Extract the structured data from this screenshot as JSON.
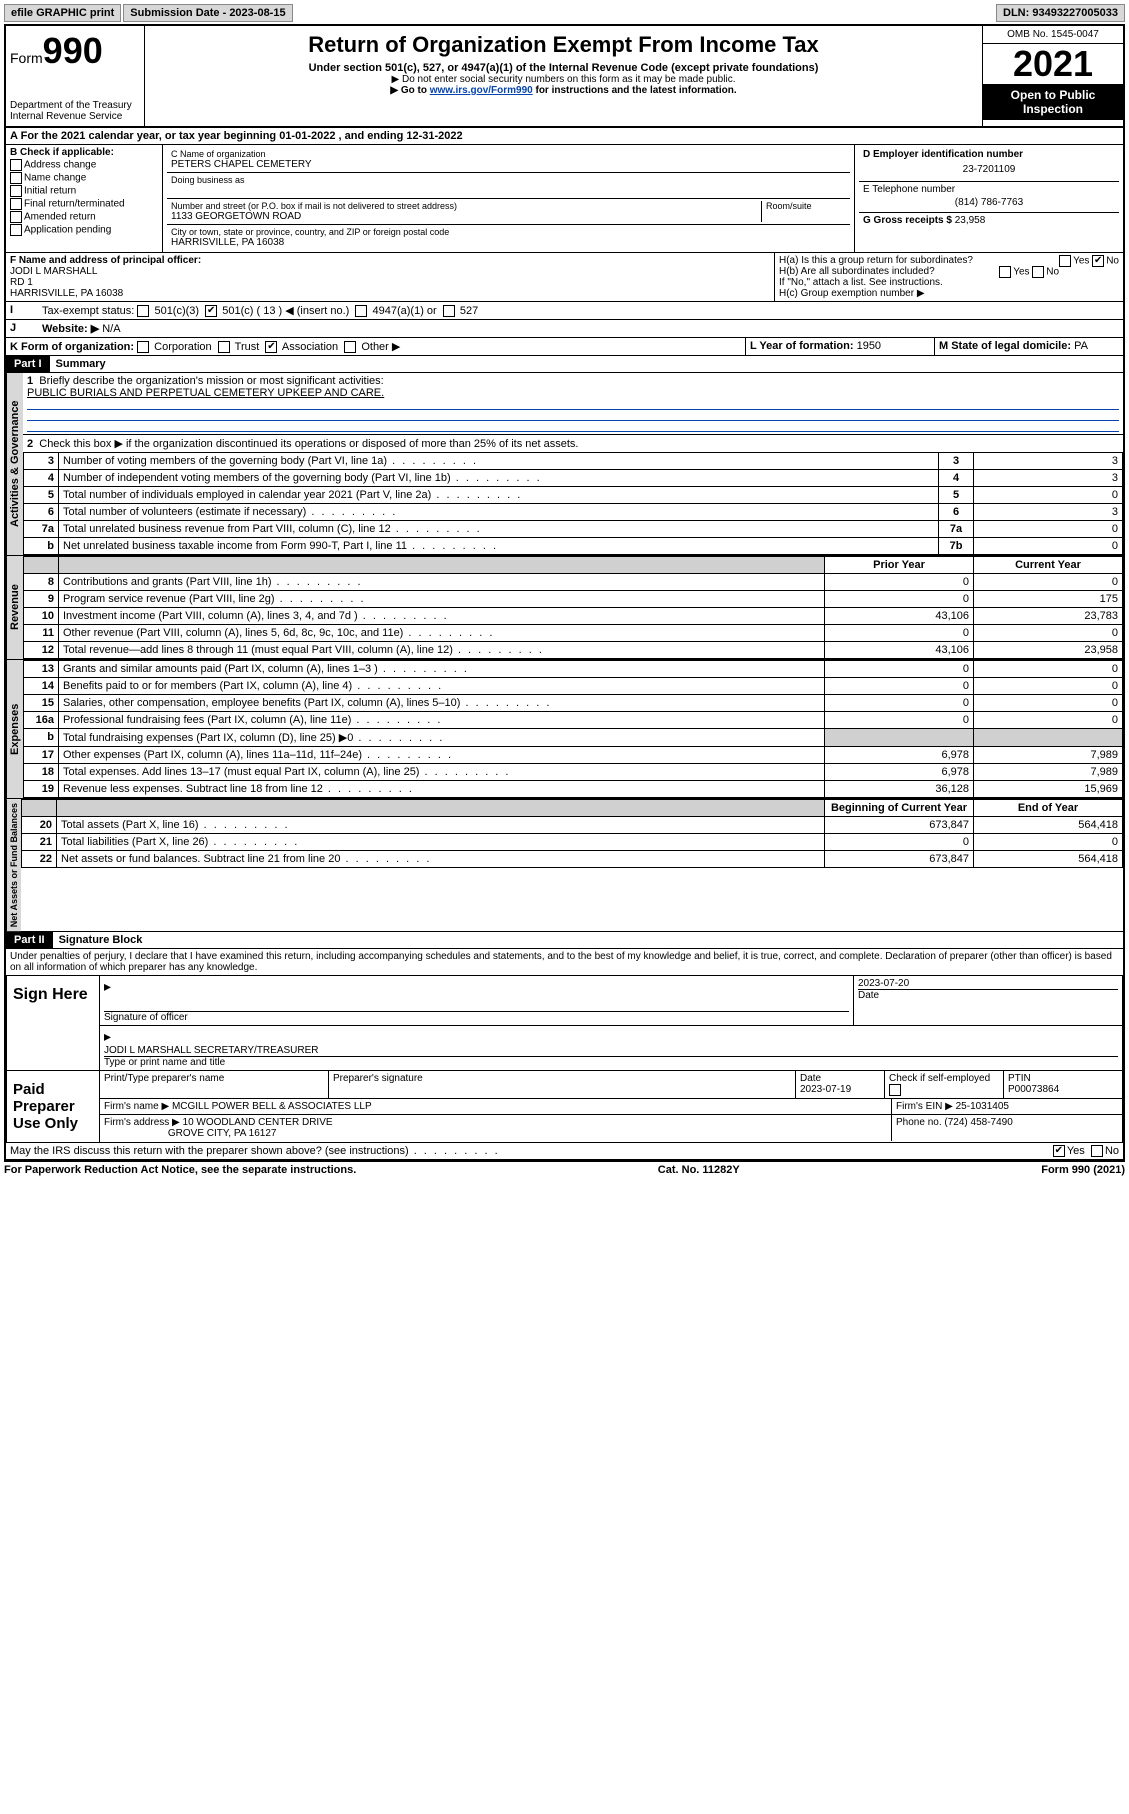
{
  "topbar": {
    "efile": "efile GRAPHIC print",
    "submission_label": "Submission Date - 2023-08-15",
    "dln": "DLN: 93493227005033"
  },
  "header": {
    "form_prefix": "Form",
    "form_number": "990",
    "dept": "Department of the Treasury",
    "irs": "Internal Revenue Service",
    "title": "Return of Organization Exempt From Income Tax",
    "subtitle": "Under section 501(c), 527, or 4947(a)(1) of the Internal Revenue Code (except private foundations)",
    "note1": "▶ Do not enter social security numbers on this form as it may be made public.",
    "note2_pre": "▶ Go to ",
    "note2_link": "www.irs.gov/Form990",
    "note2_post": " for instructions and the latest information.",
    "omb": "OMB No. 1545-0047",
    "year": "2021",
    "open": "Open to Public Inspection"
  },
  "A": {
    "text": "For the 2021 calendar year, or tax year beginning 01-01-2022   , and ending 12-31-2022"
  },
  "B": {
    "label": "B Check if applicable:",
    "opts": [
      "Address change",
      "Name change",
      "Initial return",
      "Final return/terminated",
      "Amended return",
      "Application pending"
    ]
  },
  "C": {
    "name_label": "C Name of organization",
    "name": "PETERS CHAPEL CEMETERY",
    "dba_label": "Doing business as",
    "addr_label": "Number and street (or P.O. box if mail is not delivered to street address)",
    "room_label": "Room/suite",
    "addr": "1133 GEORGETOWN ROAD",
    "city_label": "City or town, state or province, country, and ZIP or foreign postal code",
    "city": "HARRISVILLE, PA  16038"
  },
  "D": {
    "label": "D Employer identification number",
    "ein": "23-7201109"
  },
  "E": {
    "label": "E Telephone number",
    "phone": "(814) 786-7763"
  },
  "G": {
    "label": "G Gross receipts $",
    "amount": "23,958"
  },
  "F": {
    "label": "F  Name and address of principal officer:",
    "name": "JODI L MARSHALL",
    "addr1": "RD 1",
    "addr2": "HARRISVILLE, PA  16038"
  },
  "H": {
    "a": "H(a)  Is this a group return for subordinates?",
    "b": "H(b)  Are all subordinates included?",
    "b_note": "If \"No,\" attach a list. See instructions.",
    "c": "H(c)  Group exemption number ▶",
    "yes": "Yes",
    "no": "No"
  },
  "I": {
    "label": "Tax-exempt status:",
    "opt1": "501(c)(3)",
    "opt2": "501(c) ( 13 ) ◀ (insert no.)",
    "opt3": "4947(a)(1) or",
    "opt4": "527"
  },
  "J": {
    "label": "Website: ▶",
    "val": "N/A"
  },
  "K": {
    "label": "K Form of organization:",
    "opts": [
      "Corporation",
      "Trust",
      "Association",
      "Other ▶"
    ],
    "checked_idx": 2
  },
  "L": {
    "label": "L Year of formation:",
    "val": "1950"
  },
  "M": {
    "label": "M State of legal domicile:",
    "val": "PA"
  },
  "part1": {
    "hdr": "Part I",
    "title": "Summary",
    "line1_label": "Briefly describe the organization's mission or most significant activities:",
    "line1_text": "PUBLIC BURIALS AND PERPETUAL CEMETERY UPKEEP AND CARE.",
    "line2": "Check this box ▶       if the organization discontinued its operations or disposed of more than 25% of its net assets.",
    "rows_gov": [
      {
        "n": "3",
        "d": "Number of voting members of the governing body (Part VI, line 1a)",
        "box": "3",
        "v": "3"
      },
      {
        "n": "4",
        "d": "Number of independent voting members of the governing body (Part VI, line 1b)",
        "box": "4",
        "v": "3"
      },
      {
        "n": "5",
        "d": "Total number of individuals employed in calendar year 2021 (Part V, line 2a)",
        "box": "5",
        "v": "0"
      },
      {
        "n": "6",
        "d": "Total number of volunteers (estimate if necessary)",
        "box": "6",
        "v": "3"
      },
      {
        "n": "7a",
        "d": "Total unrelated business revenue from Part VIII, column (C), line 12",
        "box": "7a",
        "v": "0"
      },
      {
        "n": "b",
        "d": "Net unrelated business taxable income from Form 990-T, Part I, line 11",
        "box": "7b",
        "v": "0"
      }
    ],
    "col_prior": "Prior Year",
    "col_curr": "Current Year",
    "rows_rev": [
      {
        "n": "8",
        "d": "Contributions and grants (Part VIII, line 1h)",
        "p": "0",
        "c": "0"
      },
      {
        "n": "9",
        "d": "Program service revenue (Part VIII, line 2g)",
        "p": "0",
        "c": "175"
      },
      {
        "n": "10",
        "d": "Investment income (Part VIII, column (A), lines 3, 4, and 7d )",
        "p": "43,106",
        "c": "23,783"
      },
      {
        "n": "11",
        "d": "Other revenue (Part VIII, column (A), lines 5, 6d, 8c, 9c, 10c, and 11e)",
        "p": "0",
        "c": "0"
      },
      {
        "n": "12",
        "d": "Total revenue—add lines 8 through 11 (must equal Part VIII, column (A), line 12)",
        "p": "43,106",
        "c": "23,958"
      }
    ],
    "rows_exp": [
      {
        "n": "13",
        "d": "Grants and similar amounts paid (Part IX, column (A), lines 1–3 )",
        "p": "0",
        "c": "0"
      },
      {
        "n": "14",
        "d": "Benefits paid to or for members (Part IX, column (A), line 4)",
        "p": "0",
        "c": "0"
      },
      {
        "n": "15",
        "d": "Salaries, other compensation, employee benefits (Part IX, column (A), lines 5–10)",
        "p": "0",
        "c": "0"
      },
      {
        "n": "16a",
        "d": "Professional fundraising fees (Part IX, column (A), line 11e)",
        "p": "0",
        "c": "0"
      },
      {
        "n": "b",
        "d": "Total fundraising expenses (Part IX, column (D), line 25) ▶0",
        "p": "",
        "c": "",
        "shade": true
      },
      {
        "n": "17",
        "d": "Other expenses (Part IX, column (A), lines 11a–11d, 11f–24e)",
        "p": "6,978",
        "c": "7,989"
      },
      {
        "n": "18",
        "d": "Total expenses. Add lines 13–17 (must equal Part IX, column (A), line 25)",
        "p": "6,978",
        "c": "7,989"
      },
      {
        "n": "19",
        "d": "Revenue less expenses. Subtract line 18 from line 12",
        "p": "36,128",
        "c": "15,969"
      }
    ],
    "col_begin": "Beginning of Current Year",
    "col_end": "End of Year",
    "rows_net": [
      {
        "n": "20",
        "d": "Total assets (Part X, line 16)",
        "p": "673,847",
        "c": "564,418"
      },
      {
        "n": "21",
        "d": "Total liabilities (Part X, line 26)",
        "p": "0",
        "c": "0"
      },
      {
        "n": "22",
        "d": "Net assets or fund balances. Subtract line 21 from line 20",
        "p": "673,847",
        "c": "564,418"
      }
    ],
    "vtab_gov": "Activities & Governance",
    "vtab_rev": "Revenue",
    "vtab_exp": "Expenses",
    "vtab_net": "Net Assets or Fund Balances"
  },
  "part2": {
    "hdr": "Part II",
    "title": "Signature Block",
    "decl": "Under penalties of perjury, I declare that I have examined this return, including accompanying schedules and statements, and to the best of my knowledge and belief, it is true, correct, and complete. Declaration of preparer (other than officer) is based on all information of which preparer has any knowledge."
  },
  "sign": {
    "label": "Sign Here",
    "sig_officer": "Signature of officer",
    "date_label": "Date",
    "date": "2023-07-20",
    "name_title": "JODI L MARSHALL  SECRETARY/TREASURER",
    "type_label": "Type or print name and title"
  },
  "paid": {
    "label": "Paid Preparer Use Only",
    "h1": "Print/Type preparer's name",
    "h2": "Preparer's signature",
    "h3": "Date",
    "date": "2023-07-19",
    "h4": "Check        if self-employed",
    "h5": "PTIN",
    "ptin": "P00073864",
    "firm_name_label": "Firm's name     ▶",
    "firm_name": "MCGILL POWER BELL & ASSOCIATES LLP",
    "firm_ein_label": "Firm's EIN ▶",
    "firm_ein": "25-1031405",
    "firm_addr_label": "Firm's address ▶",
    "firm_addr1": "10 WOODLAND CENTER DRIVE",
    "firm_addr2": "GROVE CITY, PA  16127",
    "phone_label": "Phone no.",
    "phone": "(724) 458-7490"
  },
  "discuss": {
    "text": "May the IRS discuss this return with the preparer shown above? (see instructions)",
    "yes": "Yes",
    "no": "No"
  },
  "footer": {
    "left": "For Paperwork Reduction Act Notice, see the separate instructions.",
    "mid": "Cat. No. 11282Y",
    "right": "Form 990 (2021)"
  }
}
